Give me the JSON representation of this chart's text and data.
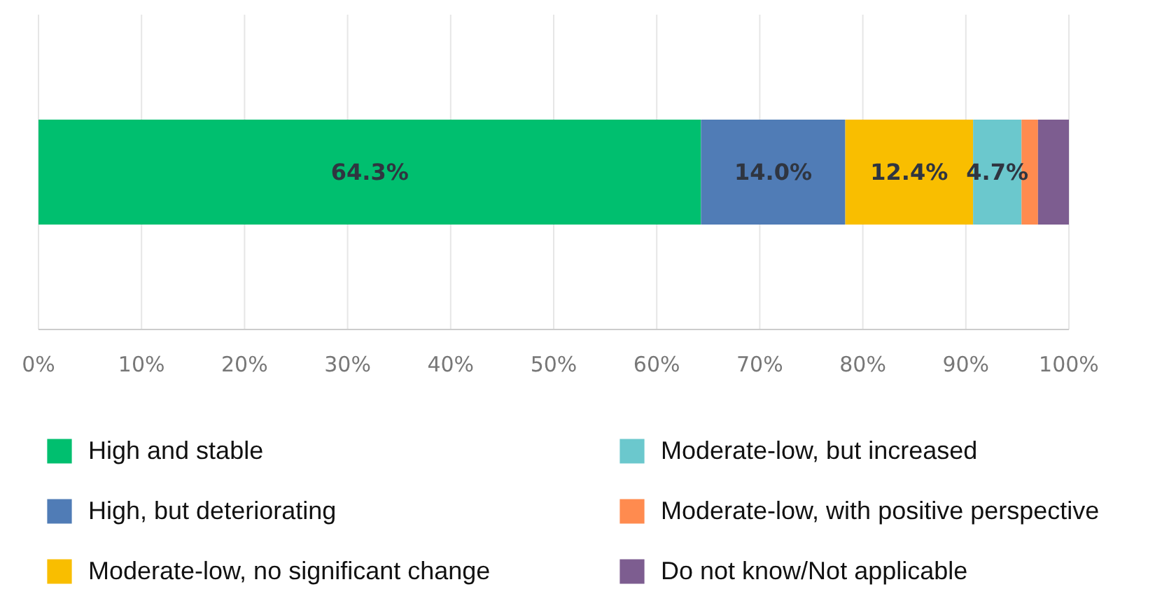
{
  "chart_data": {
    "type": "bar",
    "orientation": "horizontal",
    "stacked": true,
    "categories": [
      null
    ],
    "xlim": [
      0,
      100
    ],
    "xticks": [
      {
        "value": 0,
        "label": "0%"
      },
      {
        "value": 10,
        "label": "10%"
      },
      {
        "value": 20,
        "label": "20%"
      },
      {
        "value": 30,
        "label": "30%"
      },
      {
        "value": 40,
        "label": "40%"
      },
      {
        "value": 50,
        "label": "50%"
      },
      {
        "value": 60,
        "label": "60%"
      },
      {
        "value": 70,
        "label": "70%"
      },
      {
        "value": 80,
        "label": "80%"
      },
      {
        "value": 90,
        "label": "90%"
      },
      {
        "value": 100,
        "label": "100%"
      }
    ],
    "grid": "x",
    "legend": "bottom",
    "series": [
      {
        "name": "High and stable",
        "color": "#00bf6f",
        "values": [
          64.3
        ],
        "value_labels": [
          "64.3%"
        ]
      },
      {
        "name": "High, but deteriorating",
        "color": "#507cb6",
        "values": [
          14.0
        ],
        "value_labels": [
          "14.0%"
        ]
      },
      {
        "name": "Moderate-low, no significant change",
        "color": "#f9be00",
        "values": [
          12.4
        ],
        "value_labels": [
          "12.4%"
        ]
      },
      {
        "name": "Moderate-low, but increased",
        "color": "#6bc8cd",
        "values": [
          4.7
        ],
        "value_labels": [
          "4.7%"
        ]
      },
      {
        "name": "Moderate-low, with positive perspective",
        "color": "#ff8b4f",
        "values": [
          1.6
        ]
      },
      {
        "name": "Do not know/Not applicable",
        "color": "#7d5d90",
        "values": [
          3.0
        ]
      }
    ]
  }
}
